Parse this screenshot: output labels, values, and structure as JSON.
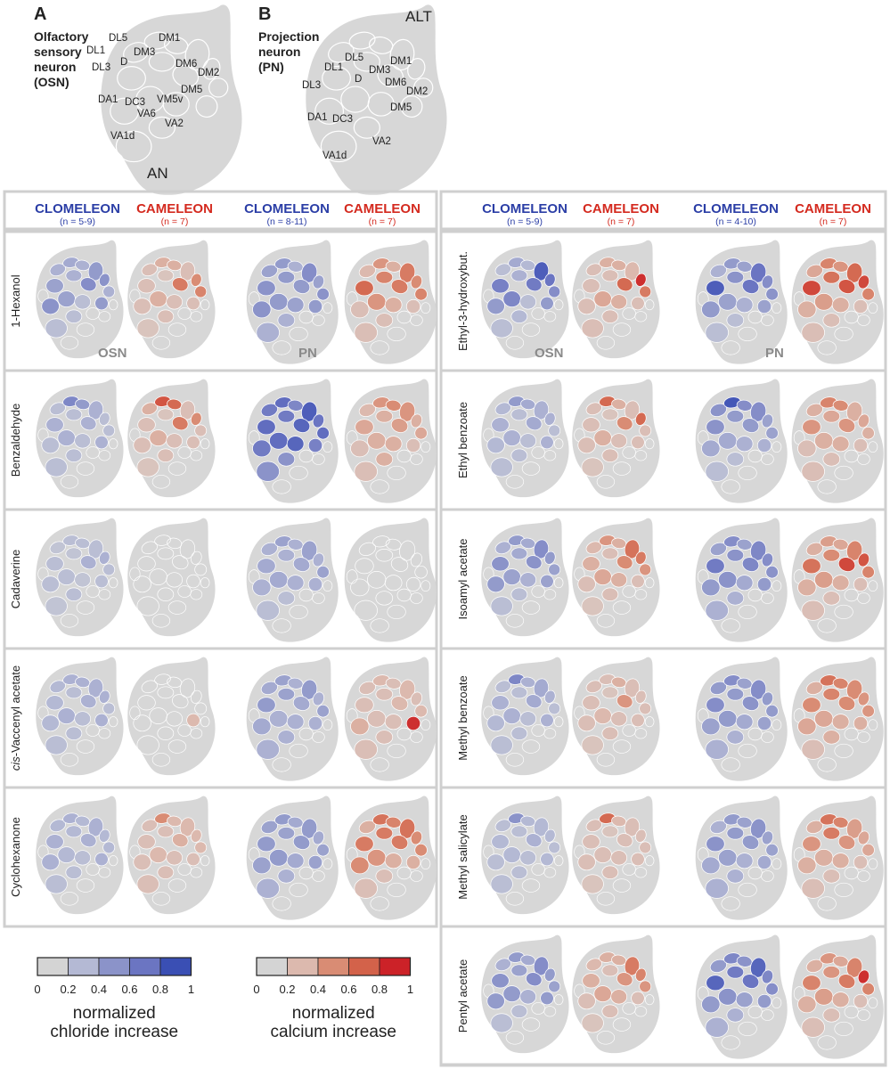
{
  "panels": {
    "a": {
      "letter": "A",
      "title": [
        "Olfactory",
        "sensory",
        "neuron",
        "(OSN)"
      ],
      "side_label": "AN",
      "glomeruli": [
        "DL5",
        "DM1",
        "DL1",
        "DM3",
        "D",
        "DL3",
        "DM6",
        "DM2",
        "DM5",
        "DA1",
        "DC3",
        "VM5v",
        "VA6",
        "VA2",
        "VA1d"
      ]
    },
    "b": {
      "letter": "B",
      "title": [
        "Projection",
        "neuron",
        "(PN)"
      ],
      "side_label": "ALT",
      "glomeruli": [
        "DL5",
        "DM1",
        "DL1",
        "DM3",
        "D",
        "DM6",
        "DL3",
        "DM2",
        "DA1",
        "DC3",
        "DM5",
        "VA2",
        "VA1d"
      ]
    }
  },
  "headers": {
    "left": [
      {
        "name": "CLOMELEON",
        "n": "(n = 5-9)",
        "sensor": "chloride"
      },
      {
        "name": "CAMELEON",
        "n": "(n = 7)",
        "sensor": "calcium"
      },
      {
        "name": "CLOMELEON",
        "n": "(n = 8-11)",
        "sensor": "chloride"
      },
      {
        "name": "CAMELEON",
        "n": "(n = 7)",
        "sensor": "calcium"
      }
    ],
    "right": [
      {
        "name": "CLOMELEON",
        "n": "(n = 5-9)",
        "sensor": "chloride"
      },
      {
        "name": "CAMELEON",
        "n": "(n = 7)",
        "sensor": "calcium"
      },
      {
        "name": "CLOMELEON",
        "n": "(n = 4-10)",
        "sensor": "chloride"
      },
      {
        "name": "CAMELEON",
        "n": "(n = 7)",
        "sensor": "calcium"
      }
    ]
  },
  "group_labels": {
    "osn": "OSN",
    "pn": "PN"
  },
  "odors_left": [
    {
      "label": "1-Hexanol",
      "prefix": "",
      "maps": [
        [
          0.3,
          0.35,
          0.3,
          0.45,
          0.3,
          0.4,
          0.55,
          0.5,
          0.3,
          0.45,
          0.5,
          0.4,
          0.2,
          0.2,
          0.2
        ],
        [
          0.2,
          0.3,
          0.3,
          0.2,
          0.15,
          0.2,
          0.6,
          0.5,
          0.55,
          0.2,
          0.2,
          0.3,
          0.2,
          0.2,
          0.15
        ],
        [
          0.4,
          0.45,
          0.3,
          0.55,
          0.45,
          0.5,
          0.45,
          0.4,
          0.5,
          0.45,
          0.5,
          0.45,
          0.4,
          0.3,
          0.3
        ],
        [
          0.25,
          0.45,
          0.3,
          0.6,
          0.55,
          0.7,
          0.6,
          0.5,
          0.55,
          0.2,
          0.2,
          0.45,
          0.3,
          0.2,
          0.2
        ]
      ]
    },
    {
      "label": "Benzaldehyde",
      "prefix": "",
      "maps": [
        [
          0.2,
          0.6,
          0.45,
          0.3,
          0.2,
          0.3,
          0.3,
          0.2,
          0.2,
          0.3,
          0.2,
          0.3,
          0.2,
          0.2,
          0.2
        ],
        [
          0.3,
          0.8,
          0.7,
          0.2,
          0.15,
          0.2,
          0.6,
          0.5,
          0.2,
          0.2,
          0.2,
          0.3,
          0.2,
          0.2,
          0.15
        ],
        [
          0.7,
          0.8,
          0.6,
          0.9,
          0.7,
          0.8,
          0.85,
          0.75,
          0.8,
          0.65,
          0.7,
          0.8,
          0.85,
          0.5,
          0.5
        ],
        [
          0.25,
          0.45,
          0.5,
          0.45,
          0.3,
          0.35,
          0.4,
          0.3,
          0.35,
          0.2,
          0.2,
          0.3,
          0.3,
          0.3,
          0.2
        ]
      ]
    },
    {
      "label": "Cadaverine",
      "prefix": "",
      "maps": [
        [
          0.15,
          0.2,
          0.2,
          0.2,
          0.15,
          0.2,
          0.3,
          0.3,
          0.2,
          0.2,
          0.2,
          0.2,
          0.15,
          0.2,
          0.15
        ],
        [
          0.1,
          0.1,
          0.1,
          0.1,
          0.1,
          0.1,
          0.1,
          0.1,
          0.1,
          0.1,
          0.1,
          0.1,
          0.1,
          0.1,
          0.1
        ],
        [
          0.3,
          0.4,
          0.3,
          0.4,
          0.3,
          0.35,
          0.35,
          0.3,
          0.4,
          0.3,
          0.3,
          0.35,
          0.3,
          0.2,
          0.2
        ],
        [
          0.1,
          0.1,
          0.1,
          0.1,
          0.1,
          0.1,
          0.1,
          0.1,
          0.1,
          0.1,
          0.1,
          0.1,
          0.1,
          0.1,
          0.1
        ]
      ]
    },
    {
      "label": " acetate",
      "prefix": "cis",
      "rest": "-Vaccenyl",
      "maps": [
        [
          0.25,
          0.3,
          0.3,
          0.3,
          0.2,
          0.25,
          0.3,
          0.3,
          0.2,
          0.3,
          0.25,
          0.3,
          0.2,
          0.2,
          0.2
        ],
        [
          0.1,
          0.1,
          0.1,
          0.1,
          0.1,
          0.1,
          0.1,
          0.1,
          0.1,
          0.25,
          0.1,
          0.1,
          0.1,
          0.1,
          0.1
        ],
        [
          0.35,
          0.4,
          0.3,
          0.45,
          0.4,
          0.45,
          0.35,
          0.3,
          0.4,
          0.3,
          0.35,
          0.3,
          0.3,
          0.3,
          0.3
        ],
        [
          0.2,
          0.25,
          0.2,
          0.25,
          0.2,
          0.2,
          0.25,
          0.2,
          0.25,
          0.95,
          0.3,
          0.2,
          0.2,
          0.2,
          0.2
        ]
      ]
    },
    {
      "label": "Cyclohexanone",
      "prefix": "",
      "maps": [
        [
          0.25,
          0.3,
          0.25,
          0.3,
          0.25,
          0.3,
          0.3,
          0.25,
          0.25,
          0.3,
          0.3,
          0.25,
          0.2,
          0.2,
          0.2
        ],
        [
          0.2,
          0.5,
          0.25,
          0.25,
          0.2,
          0.2,
          0.3,
          0.25,
          0.25,
          0.2,
          0.2,
          0.25,
          0.2,
          0.2,
          0.2
        ],
        [
          0.4,
          0.45,
          0.35,
          0.45,
          0.4,
          0.45,
          0.45,
          0.35,
          0.4,
          0.4,
          0.4,
          0.45,
          0.35,
          0.3,
          0.3
        ],
        [
          0.3,
          0.65,
          0.55,
          0.65,
          0.6,
          0.6,
          0.6,
          0.5,
          0.5,
          0.3,
          0.5,
          0.45,
          0.3,
          0.2,
          0.2
        ]
      ]
    }
  ],
  "odors_right": [
    {
      "label": "Ethyl-3-hydroxybut.",
      "prefix": "",
      "maps": [
        [
          0.2,
          0.35,
          0.25,
          0.9,
          0.3,
          0.65,
          0.7,
          0.75,
          0.55,
          0.45,
          0.45,
          0.6,
          0.2,
          0.25,
          0.2
        ],
        [
          0.2,
          0.3,
          0.3,
          0.25,
          0.2,
          0.2,
          0.7,
          0.95,
          0.6,
          0.2,
          0.2,
          0.35,
          0.3,
          0.2,
          0.2
        ],
        [
          0.3,
          0.45,
          0.4,
          0.75,
          0.5,
          0.9,
          0.75,
          0.55,
          0.5,
          0.4,
          0.45,
          0.4,
          0.3,
          0.2,
          0.2
        ],
        [
          0.35,
          0.55,
          0.45,
          0.7,
          0.65,
          0.85,
          0.8,
          0.85,
          0.55,
          0.2,
          0.3,
          0.4,
          0.3,
          0.2,
          0.2
        ]
      ]
    },
    {
      "label": "Ethyl benzoate",
      "prefix": "",
      "maps": [
        [
          0.25,
          0.45,
          0.35,
          0.3,
          0.2,
          0.3,
          0.35,
          0.3,
          0.2,
          0.3,
          0.25,
          0.3,
          0.2,
          0.2,
          0.2
        ],
        [
          0.2,
          0.7,
          0.3,
          0.2,
          0.15,
          0.2,
          0.5,
          0.7,
          0.2,
          0.2,
          0.2,
          0.3,
          0.2,
          0.2,
          0.15
        ],
        [
          0.5,
          0.95,
          0.55,
          0.55,
          0.45,
          0.5,
          0.45,
          0.4,
          0.4,
          0.3,
          0.35,
          0.35,
          0.3,
          0.2,
          0.2
        ],
        [
          0.3,
          0.55,
          0.5,
          0.3,
          0.35,
          0.45,
          0.45,
          0.35,
          0.3,
          0.2,
          0.2,
          0.3,
          0.3,
          0.2,
          0.2
        ]
      ]
    },
    {
      "label": "Isoamyl acetate",
      "prefix": "",
      "maps": [
        [
          0.3,
          0.45,
          0.35,
          0.55,
          0.35,
          0.5,
          0.5,
          0.45,
          0.4,
          0.4,
          0.45,
          0.4,
          0.3,
          0.2,
          0.2
        ],
        [
          0.25,
          0.45,
          0.3,
          0.65,
          0.2,
          0.3,
          0.5,
          0.6,
          0.45,
          0.2,
          0.2,
          0.35,
          0.3,
          0.2,
          0.15
        ],
        [
          0.4,
          0.55,
          0.4,
          0.6,
          0.5,
          0.7,
          0.6,
          0.55,
          0.5,
          0.45,
          0.45,
          0.5,
          0.35,
          0.3,
          0.3
        ],
        [
          0.3,
          0.4,
          0.35,
          0.55,
          0.5,
          0.65,
          0.85,
          0.8,
          0.55,
          0.2,
          0.3,
          0.4,
          0.3,
          0.2,
          0.2
        ]
      ]
    },
    {
      "label": "Methyl benzoate",
      "prefix": "",
      "maps": [
        [
          0.2,
          0.6,
          0.3,
          0.35,
          0.2,
          0.3,
          0.35,
          0.3,
          0.2,
          0.3,
          0.25,
          0.3,
          0.2,
          0.2,
          0.2
        ],
        [
          0.2,
          0.2,
          0.3,
          0.2,
          0.15,
          0.2,
          0.45,
          0.2,
          0.2,
          0.2,
          0.2,
          0.25,
          0.2,
          0.2,
          0.15
        ],
        [
          0.45,
          0.55,
          0.4,
          0.55,
          0.45,
          0.55,
          0.5,
          0.45,
          0.45,
          0.4,
          0.4,
          0.45,
          0.35,
          0.3,
          0.3
        ],
        [
          0.3,
          0.65,
          0.55,
          0.5,
          0.55,
          0.5,
          0.5,
          0.45,
          0.45,
          0.3,
          0.35,
          0.35,
          0.3,
          0.3,
          0.2
        ]
      ]
    },
    {
      "label": "Methyl salicylate",
      "prefix": "",
      "maps": [
        [
          0.2,
          0.5,
          0.25,
          0.25,
          0.2,
          0.25,
          0.3,
          0.25,
          0.2,
          0.25,
          0.2,
          0.25,
          0.2,
          0.2,
          0.2
        ],
        [
          0.2,
          0.7,
          0.25,
          0.2,
          0.15,
          0.2,
          0.2,
          0.2,
          0.2,
          0.2,
          0.2,
          0.2,
          0.2,
          0.2,
          0.15
        ],
        [
          0.3,
          0.45,
          0.4,
          0.5,
          0.45,
          0.5,
          0.45,
          0.4,
          0.4,
          0.35,
          0.35,
          0.4,
          0.3,
          0.3,
          0.3
        ],
        [
          0.3,
          0.65,
          0.55,
          0.4,
          0.6,
          0.45,
          0.45,
          0.35,
          0.35,
          0.2,
          0.3,
          0.3,
          0.3,
          0.2,
          0.2
        ]
      ]
    },
    {
      "label": "Pentyl acetate",
      "prefix": "",
      "maps": [
        [
          0.3,
          0.45,
          0.35,
          0.55,
          0.4,
          0.5,
          0.55,
          0.45,
          0.4,
          0.45,
          0.45,
          0.45,
          0.3,
          0.2,
          0.2
        ],
        [
          0.25,
          0.3,
          0.3,
          0.6,
          0.2,
          0.3,
          0.45,
          0.55,
          0.45,
          0.2,
          0.2,
          0.35,
          0.3,
          0.2,
          0.15
        ],
        [
          0.45,
          0.6,
          0.5,
          0.85,
          0.7,
          0.85,
          0.75,
          0.6,
          0.55,
          0.45,
          0.45,
          0.5,
          0.4,
          0.3,
          0.3
        ],
        [
          0.3,
          0.45,
          0.35,
          0.55,
          0.45,
          0.55,
          0.6,
          0.95,
          0.55,
          0.2,
          0.3,
          0.4,
          0.3,
          0.2,
          0.2
        ]
      ]
    }
  ],
  "legends": {
    "chloride": {
      "ticks": [
        "0",
        "0.2",
        "0.4",
        "0.6",
        "0.8",
        "1"
      ],
      "label": [
        "normalized",
        "chloride increase"
      ],
      "colors": [
        "#d4d4d4",
        "#b4b9d4",
        "#8b93c9",
        "#6b75c2",
        "#3a4fb4"
      ]
    },
    "calcium": {
      "ticks": [
        "0",
        "0.2",
        "0.4",
        "0.6",
        "0.8",
        "1"
      ],
      "label": [
        "normalized",
        "calcium increase"
      ],
      "colors": [
        "#d4d4d4",
        "#dcb9ae",
        "#d98c74",
        "#d3624a",
        "#cc2228"
      ]
    }
  },
  "colors": {
    "clomeleon": "#2b3ea6",
    "cameleon": "#d42a1f",
    "frame": "#cfcfcf",
    "al": "#d7d7d7"
  }
}
